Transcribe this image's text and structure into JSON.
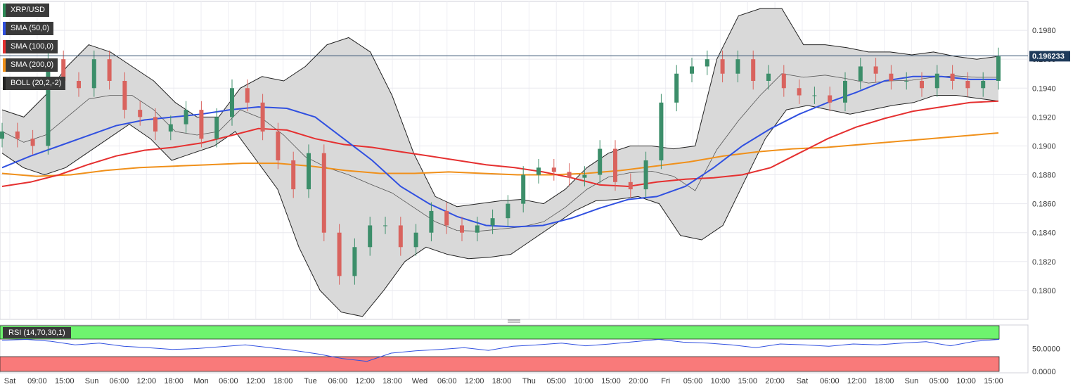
{
  "legend": [
    {
      "label": "XRP/USD",
      "color": "#2e8b57"
    },
    {
      "label": "SMA (50,0)",
      "color": "#3050e0"
    },
    {
      "label": "SMA (100,0)",
      "color": "#e53030"
    },
    {
      "label": "SMA (200,0)",
      "color": "#f0901a"
    },
    {
      "label": "BOLL (20,2,-2)",
      "color": "#222222"
    }
  ],
  "rsi_label": "RSI (14,70,30,1)",
  "colors": {
    "up": "#3c8e6a",
    "down": "#d9635e",
    "sma50": "#3050e0",
    "sma100": "#e53030",
    "sma200": "#f0901a",
    "boll_fill": "#d9d9d9",
    "rsi_line": "#3050e0",
    "rsi_over": "#6ef46e",
    "rsi_under": "#f97a7a"
  },
  "chart_data": [
    {
      "type": "candlestick",
      "title": "XRP/USD",
      "ylim": [
        0.178,
        0.2
      ],
      "y_ticks": [
        "0.1800",
        "0.1820",
        "0.1840",
        "0.1860",
        "0.1880",
        "0.1900",
        "0.1920",
        "0.1940",
        "0.1960",
        "0.1980"
      ],
      "x_ticks": [
        "Sat",
        "09:00",
        "15:00",
        "Sun",
        "06:00",
        "12:00",
        "18:00",
        "Mon",
        "06:00",
        "12:00",
        "18:00",
        "Tue",
        "06:00",
        "12:00",
        "18:00",
        "Wed",
        "06:00",
        "12:00",
        "18:00",
        "Thu",
        "05:00",
        "10:00",
        "15:00",
        "20:00",
        "Fri",
        "05:00",
        "10:00",
        "15:00",
        "20:00",
        "Sat",
        "06:00",
        "12:00",
        "18:00",
        "Sun",
        "05:00",
        "10:00",
        "15:00"
      ],
      "last_price": "0.196233",
      "grid": true,
      "series": [
        {
          "name": "XRP/USD",
          "close": [
            0.191,
            0.1905,
            0.19,
            0.196,
            0.1945,
            0.194,
            0.196,
            0.1945,
            0.1925,
            0.192,
            0.191,
            0.1915,
            0.1925,
            0.1905,
            0.192,
            0.194,
            0.193,
            0.191,
            0.189,
            0.187,
            0.1895,
            0.184,
            0.181,
            0.183,
            0.1845,
            0.1845,
            0.183,
            0.184,
            0.1855,
            0.1845,
            0.184,
            0.1845,
            0.185,
            0.186,
            0.188,
            0.1885,
            0.1882,
            0.1878,
            0.188,
            0.1898,
            0.1875,
            0.187,
            0.189,
            0.193,
            0.195,
            0.1955,
            0.196,
            0.195,
            0.196,
            0.1945,
            0.195,
            0.194,
            0.1935,
            0.1935,
            0.193,
            0.1945,
            0.1955,
            0.195,
            0.1945,
            0.1945,
            0.194,
            0.195,
            0.1945,
            0.194,
            0.1945,
            0.1962
          ]
        },
        {
          "name": "SMA (50,0)",
          "values": [
            0.1885,
            0.1893,
            0.19,
            0.1907,
            0.1914,
            0.1918,
            0.192,
            0.1922,
            0.1925,
            0.1927,
            0.1926,
            0.192,
            0.1905,
            0.189,
            0.1872,
            0.186,
            0.1851,
            0.1845,
            0.1844,
            0.1845,
            0.185,
            0.1857,
            0.1863,
            0.1865,
            0.1872,
            0.1885,
            0.19,
            0.1912,
            0.1922,
            0.193,
            0.1937,
            0.1945,
            0.1948,
            0.1948,
            0.1946,
            0.1946
          ]
        },
        {
          "name": "SMA (100,0)",
          "values": [
            0.1872,
            0.1875,
            0.188,
            0.1887,
            0.1893,
            0.1897,
            0.1899,
            0.1902,
            0.1907,
            0.1912,
            0.1911,
            0.1905,
            0.1901,
            0.1899,
            0.1896,
            0.1893,
            0.189,
            0.1887,
            0.1885,
            0.1882,
            0.1878,
            0.1873,
            0.1872,
            0.1875,
            0.1877,
            0.1878,
            0.188,
            0.1885,
            0.1895,
            0.1905,
            0.1913,
            0.1919,
            0.1924,
            0.1927,
            0.193,
            0.1931
          ]
        },
        {
          "name": "SMA (200,0)",
          "values": [
            0.1881,
            0.1879,
            0.188,
            0.1883,
            0.1885,
            0.1886,
            0.1887,
            0.1888,
            0.1888,
            0.1886,
            0.1883,
            0.1881,
            0.1881,
            0.1882,
            0.1881,
            0.188,
            0.188,
            0.1881,
            0.1883,
            0.1886,
            0.1889,
            0.1893,
            0.1896,
            0.1898,
            0.1899,
            0.1901,
            0.1903,
            0.1905,
            0.1907,
            0.1909
          ]
        },
        {
          "name": "BOLL upper",
          "values": [
            0.1925,
            0.192,
            0.1935,
            0.1955,
            0.197,
            0.1965,
            0.1955,
            0.1945,
            0.193,
            0.192,
            0.192,
            0.194,
            0.1948,
            0.1945,
            0.1955,
            0.197,
            0.1975,
            0.1965,
            0.1935,
            0.1895,
            0.1865,
            0.1858,
            0.186,
            0.1862,
            0.1863,
            0.186,
            0.187,
            0.1885,
            0.1895,
            0.19,
            0.19,
            0.1898,
            0.19,
            0.196,
            0.199,
            0.1995,
            0.1995,
            0.197,
            0.197,
            0.1968,
            0.1965,
            0.1965,
            0.1963,
            0.1965,
            0.1962,
            0.196,
            0.1962
          ]
        },
        {
          "name": "BOLL lower",
          "values": [
            0.1895,
            0.1885,
            0.188,
            0.1885,
            0.1895,
            0.1905,
            0.1915,
            0.1905,
            0.189,
            0.1895,
            0.19,
            0.191,
            0.189,
            0.187,
            0.183,
            0.18,
            0.1785,
            0.1782,
            0.18,
            0.182,
            0.183,
            0.1825,
            0.1822,
            0.1823,
            0.1825,
            0.1835,
            0.1845,
            0.1855,
            0.1862,
            0.1863,
            0.1865,
            0.186,
            0.1838,
            0.1835,
            0.1845,
            0.1875,
            0.1905,
            0.1925,
            0.1928,
            0.1925,
            0.1922,
            0.1925,
            0.1928,
            0.193,
            0.1935,
            0.1935,
            0.1933,
            0.1931
          ]
        }
      ]
    },
    {
      "type": "line",
      "title": "RSI (14,70,30,1)",
      "ylim": [
        0,
        100
      ],
      "y_ticks": [
        "0.0000",
        "50.0000"
      ],
      "series": [
        {
          "name": "RSI",
          "values": [
            68,
            70,
            66,
            58,
            62,
            55,
            52,
            48,
            50,
            54,
            58,
            52,
            46,
            38,
            28,
            22,
            40,
            45,
            48,
            52,
            46,
            55,
            58,
            62,
            56,
            60,
            65,
            70,
            64,
            62,
            58,
            52,
            60,
            58,
            55,
            60,
            58,
            62,
            65,
            56,
            66,
            70
          ]
        }
      ]
    }
  ]
}
